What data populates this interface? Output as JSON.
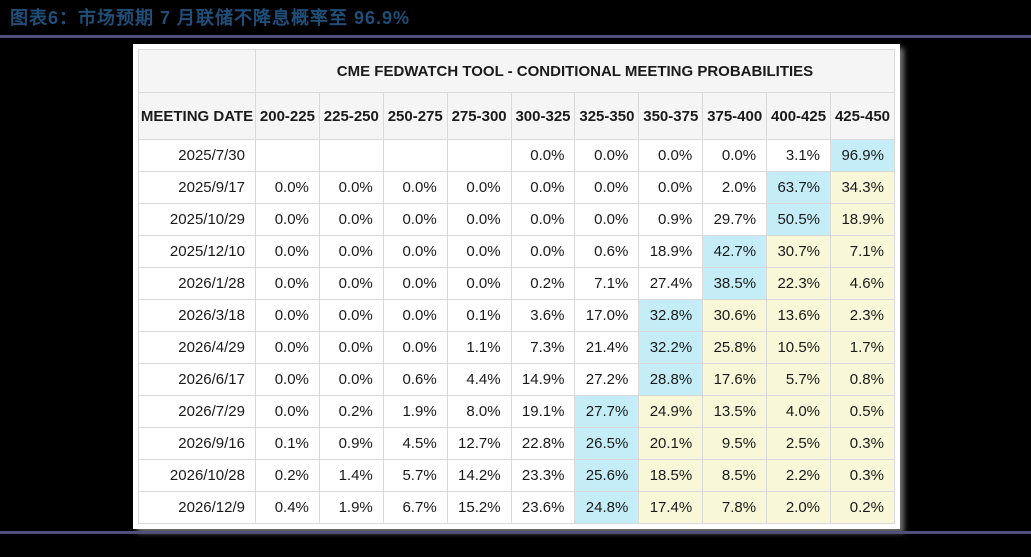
{
  "figure": {
    "title": "图表6：市场预期 7 月联储不降息概率至 96.9%"
  },
  "colors": {
    "figure_title": "#1f4e79",
    "divider_line": "#514e79",
    "highlight_mode": "#c5edf7",
    "highlight_above": "#f8f7d8",
    "header_bg": "#f5f5f5"
  },
  "chart_data": {
    "type": "table",
    "title": "CME FEDWATCH TOOL - CONDITIONAL MEETING PROBABILITIES",
    "row_header": "MEETING DATE",
    "columns": [
      "200-225",
      "225-250",
      "250-275",
      "275-300",
      "300-325",
      "325-350",
      "350-375",
      "375-400",
      "400-425",
      "425-450"
    ],
    "highlight_legend": {
      "mode": "cyan highlighted modal probability cell",
      "above": "pale yellow highlighted cells"
    },
    "rows": [
      {
        "date": "2025/7/30",
        "values": [
          "",
          "",
          "",
          "",
          "0.0%",
          "0.0%",
          "0.0%",
          "0.0%",
          "3.1%",
          "96.9%"
        ],
        "highlights": [
          "",
          "",
          "",
          "",
          "",
          "",
          "",
          "",
          "",
          "mode"
        ]
      },
      {
        "date": "2025/9/17",
        "values": [
          "0.0%",
          "0.0%",
          "0.0%",
          "0.0%",
          "0.0%",
          "0.0%",
          "0.0%",
          "2.0%",
          "63.7%",
          "34.3%"
        ],
        "highlights": [
          "",
          "",
          "",
          "",
          "",
          "",
          "",
          "",
          "mode",
          "above"
        ]
      },
      {
        "date": "2025/10/29",
        "values": [
          "0.0%",
          "0.0%",
          "0.0%",
          "0.0%",
          "0.0%",
          "0.0%",
          "0.9%",
          "29.7%",
          "50.5%",
          "18.9%"
        ],
        "highlights": [
          "",
          "",
          "",
          "",
          "",
          "",
          "",
          "",
          "mode",
          "above"
        ]
      },
      {
        "date": "2025/12/10",
        "values": [
          "0.0%",
          "0.0%",
          "0.0%",
          "0.0%",
          "0.0%",
          "0.6%",
          "18.9%",
          "42.7%",
          "30.7%",
          "7.1%"
        ],
        "highlights": [
          "",
          "",
          "",
          "",
          "",
          "",
          "",
          "mode",
          "above",
          "above"
        ]
      },
      {
        "date": "2026/1/28",
        "values": [
          "0.0%",
          "0.0%",
          "0.0%",
          "0.0%",
          "0.2%",
          "7.1%",
          "27.4%",
          "38.5%",
          "22.3%",
          "4.6%"
        ],
        "highlights": [
          "",
          "",
          "",
          "",
          "",
          "",
          "",
          "mode",
          "above",
          "above"
        ]
      },
      {
        "date": "2026/3/18",
        "values": [
          "0.0%",
          "0.0%",
          "0.0%",
          "0.1%",
          "3.6%",
          "17.0%",
          "32.8%",
          "30.6%",
          "13.6%",
          "2.3%"
        ],
        "highlights": [
          "",
          "",
          "",
          "",
          "",
          "",
          "mode",
          "above",
          "above",
          "above"
        ]
      },
      {
        "date": "2026/4/29",
        "values": [
          "0.0%",
          "0.0%",
          "0.0%",
          "1.1%",
          "7.3%",
          "21.4%",
          "32.2%",
          "25.8%",
          "10.5%",
          "1.7%"
        ],
        "highlights": [
          "",
          "",
          "",
          "",
          "",
          "",
          "mode",
          "above",
          "above",
          "above"
        ]
      },
      {
        "date": "2026/6/17",
        "values": [
          "0.0%",
          "0.0%",
          "0.6%",
          "4.4%",
          "14.9%",
          "27.2%",
          "28.8%",
          "17.6%",
          "5.7%",
          "0.8%"
        ],
        "highlights": [
          "",
          "",
          "",
          "",
          "",
          "",
          "mode",
          "above",
          "above",
          "above"
        ]
      },
      {
        "date": "2026/7/29",
        "values": [
          "0.0%",
          "0.2%",
          "1.9%",
          "8.0%",
          "19.1%",
          "27.7%",
          "24.9%",
          "13.5%",
          "4.0%",
          "0.5%"
        ],
        "highlights": [
          "",
          "",
          "",
          "",
          "",
          "mode",
          "above",
          "above",
          "above",
          "above"
        ]
      },
      {
        "date": "2026/9/16",
        "values": [
          "0.1%",
          "0.9%",
          "4.5%",
          "12.7%",
          "22.8%",
          "26.5%",
          "20.1%",
          "9.5%",
          "2.5%",
          "0.3%"
        ],
        "highlights": [
          "",
          "",
          "",
          "",
          "",
          "mode",
          "above",
          "above",
          "above",
          "above"
        ]
      },
      {
        "date": "2026/10/28",
        "values": [
          "0.2%",
          "1.4%",
          "5.7%",
          "14.2%",
          "23.3%",
          "25.6%",
          "18.5%",
          "8.5%",
          "2.2%",
          "0.3%"
        ],
        "highlights": [
          "",
          "",
          "",
          "",
          "",
          "mode",
          "above",
          "above",
          "above",
          "above"
        ]
      },
      {
        "date": "2026/12/9",
        "values": [
          "0.4%",
          "1.9%",
          "6.7%",
          "15.2%",
          "23.6%",
          "24.8%",
          "17.4%",
          "7.8%",
          "2.0%",
          "0.2%"
        ],
        "highlights": [
          "",
          "",
          "",
          "",
          "",
          "mode",
          "above",
          "above",
          "above",
          "above"
        ]
      }
    ]
  }
}
